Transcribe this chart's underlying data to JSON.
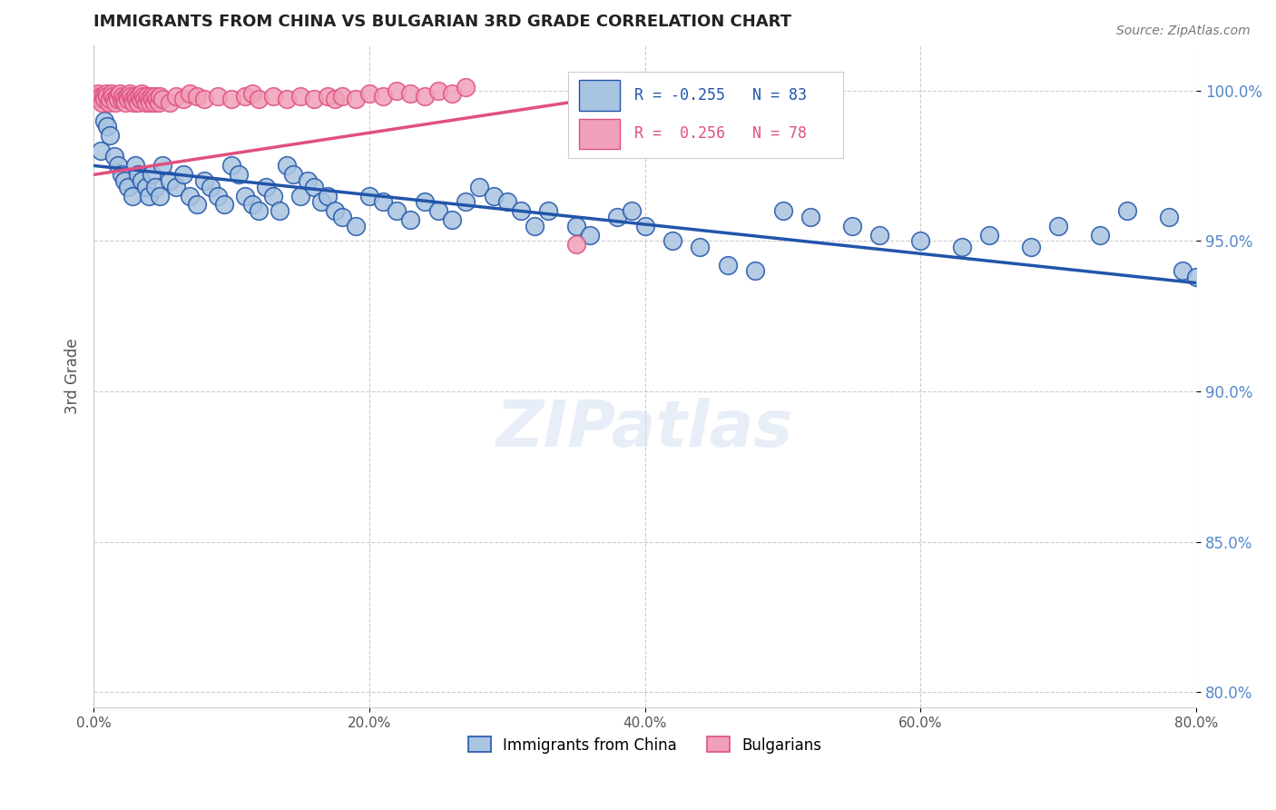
{
  "title": "IMMIGRANTS FROM CHINA VS BULGARIAN 3RD GRADE CORRELATION CHART",
  "source": "Source: ZipAtlas.com",
  "ylabel": "3rd Grade",
  "ytick_labels": [
    "80.0%",
    "85.0%",
    "90.0%",
    "95.0%",
    "100.0%"
  ],
  "ytick_values": [
    0.8,
    0.85,
    0.9,
    0.95,
    1.0
  ],
  "xlim": [
    0.0,
    0.8
  ],
  "ylim": [
    0.795,
    1.015
  ],
  "legend_blue_R": "R = -0.255",
  "legend_blue_N": "N = 83",
  "legend_pink_R": "R =  0.256",
  "legend_pink_N": "N = 78",
  "blue_color": "#a8c4e0",
  "blue_line_color": "#2255aa",
  "pink_color": "#f0a0b8",
  "pink_line_color": "#e05080",
  "watermark": "ZIPatlas",
  "blue_scatter_x": [
    0.005,
    0.008,
    0.01,
    0.012,
    0.015,
    0.018,
    0.02,
    0.022,
    0.025,
    0.028,
    0.03,
    0.032,
    0.035,
    0.038,
    0.04,
    0.042,
    0.045,
    0.048,
    0.05,
    0.055,
    0.06,
    0.065,
    0.07,
    0.075,
    0.08,
    0.085,
    0.09,
    0.095,
    0.1,
    0.105,
    0.11,
    0.115,
    0.12,
    0.125,
    0.13,
    0.135,
    0.14,
    0.145,
    0.15,
    0.155,
    0.16,
    0.165,
    0.17,
    0.175,
    0.18,
    0.19,
    0.2,
    0.21,
    0.22,
    0.23,
    0.24,
    0.25,
    0.26,
    0.27,
    0.28,
    0.29,
    0.3,
    0.31,
    0.32,
    0.33,
    0.35,
    0.36,
    0.38,
    0.39,
    0.4,
    0.42,
    0.44,
    0.46,
    0.48,
    0.5,
    0.52,
    0.55,
    0.57,
    0.6,
    0.63,
    0.65,
    0.68,
    0.7,
    0.73,
    0.75,
    0.78,
    0.79,
    0.8
  ],
  "blue_scatter_y": [
    0.98,
    0.99,
    0.988,
    0.985,
    0.978,
    0.975,
    0.972,
    0.97,
    0.968,
    0.965,
    0.975,
    0.972,
    0.97,
    0.968,
    0.965,
    0.972,
    0.968,
    0.965,
    0.975,
    0.97,
    0.968,
    0.972,
    0.965,
    0.962,
    0.97,
    0.968,
    0.965,
    0.962,
    0.975,
    0.972,
    0.965,
    0.962,
    0.96,
    0.968,
    0.965,
    0.96,
    0.975,
    0.972,
    0.965,
    0.97,
    0.968,
    0.963,
    0.965,
    0.96,
    0.958,
    0.955,
    0.965,
    0.963,
    0.96,
    0.957,
    0.963,
    0.96,
    0.957,
    0.963,
    0.968,
    0.965,
    0.963,
    0.96,
    0.955,
    0.96,
    0.955,
    0.952,
    0.958,
    0.96,
    0.955,
    0.95,
    0.948,
    0.942,
    0.94,
    0.96,
    0.958,
    0.955,
    0.952,
    0.95,
    0.948,
    0.952,
    0.948,
    0.955,
    0.952,
    0.96,
    0.958,
    0.94,
    0.938
  ],
  "pink_scatter_x": [
    0.002,
    0.003,
    0.004,
    0.005,
    0.006,
    0.007,
    0.008,
    0.009,
    0.01,
    0.011,
    0.012,
    0.013,
    0.014,
    0.015,
    0.016,
    0.017,
    0.018,
    0.019,
    0.02,
    0.021,
    0.022,
    0.023,
    0.024,
    0.025,
    0.026,
    0.027,
    0.028,
    0.029,
    0.03,
    0.031,
    0.032,
    0.033,
    0.034,
    0.035,
    0.036,
    0.037,
    0.038,
    0.039,
    0.04,
    0.041,
    0.042,
    0.043,
    0.044,
    0.045,
    0.046,
    0.047,
    0.048,
    0.05,
    0.055,
    0.06,
    0.065,
    0.07,
    0.075,
    0.08,
    0.09,
    0.1,
    0.11,
    0.115,
    0.12,
    0.13,
    0.14,
    0.15,
    0.16,
    0.17,
    0.175,
    0.18,
    0.19,
    0.2,
    0.21,
    0.22,
    0.23,
    0.24,
    0.25,
    0.26,
    0.27,
    0.35,
    0.42,
    0.46
  ],
  "pink_scatter_y": [
    0.998,
    0.999,
    0.997,
    0.998,
    0.996,
    0.998,
    0.997,
    0.999,
    0.998,
    0.996,
    0.997,
    0.999,
    0.998,
    0.997,
    0.996,
    0.998,
    0.997,
    0.999,
    0.997,
    0.998,
    0.997,
    0.996,
    0.998,
    0.997,
    0.999,
    0.998,
    0.997,
    0.996,
    0.998,
    0.997,
    0.996,
    0.998,
    0.997,
    0.999,
    0.998,
    0.997,
    0.996,
    0.998,
    0.997,
    0.996,
    0.998,
    0.997,
    0.996,
    0.998,
    0.997,
    0.996,
    0.998,
    0.997,
    0.996,
    0.998,
    0.997,
    0.999,
    0.998,
    0.997,
    0.998,
    0.997,
    0.998,
    0.999,
    0.997,
    0.998,
    0.997,
    0.998,
    0.997,
    0.998,
    0.997,
    0.998,
    0.997,
    0.999,
    0.998,
    1.0,
    0.999,
    0.998,
    1.0,
    0.999,
    1.001,
    0.949,
    1.001,
    1.0
  ]
}
